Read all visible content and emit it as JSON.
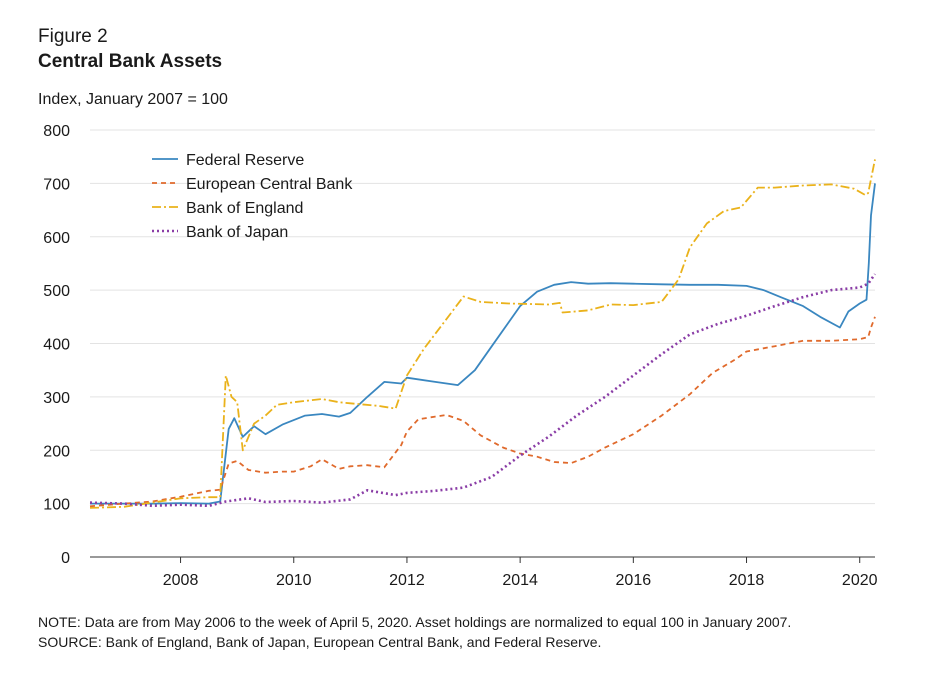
{
  "figure_label": "Figure 2",
  "footnotes": {
    "note": "NOTE: Data are from May 2006 to the week of April 5, 2020. Asset holdings are normalized to equal 100 in January 2007.",
    "source": "SOURCE: Bank of England, Bank of Japan, European Central Bank, and Federal Reserve."
  },
  "chart_data": {
    "type": "line",
    "title": "Central Bank Assets",
    "ylabel": "Index,  January 2007 = 100",
    "xlabel": "",
    "xlim": [
      2006.4,
      2020.27
    ],
    "ylim": [
      0,
      800
    ],
    "x_ticks": [
      2008,
      2010,
      2012,
      2014,
      2016,
      2018,
      2020
    ],
    "y_ticks": [
      0,
      100,
      200,
      300,
      400,
      500,
      600,
      700,
      800
    ],
    "grid": "horizontal",
    "legend_position": "top-left",
    "series": [
      {
        "name": "Federal Reserve",
        "color": "#3a87c0",
        "style": "solid",
        "points": [
          [
            2006.4,
            100
          ],
          [
            2007.0,
            100
          ],
          [
            2007.5,
            100
          ],
          [
            2008.0,
            101
          ],
          [
            2008.5,
            100
          ],
          [
            2008.7,
            104
          ],
          [
            2008.85,
            240
          ],
          [
            2008.95,
            260
          ],
          [
            2009.1,
            225
          ],
          [
            2009.3,
            245
          ],
          [
            2009.5,
            230
          ],
          [
            2009.8,
            248
          ],
          [
            2010.2,
            265
          ],
          [
            2010.5,
            268
          ],
          [
            2010.8,
            263
          ],
          [
            2011.0,
            270
          ],
          [
            2011.3,
            300
          ],
          [
            2011.6,
            328
          ],
          [
            2011.9,
            325
          ],
          [
            2012.0,
            336
          ],
          [
            2012.5,
            328
          ],
          [
            2012.9,
            322
          ],
          [
            2013.2,
            350
          ],
          [
            2013.5,
            395
          ],
          [
            2013.8,
            440
          ],
          [
            2014.0,
            470
          ],
          [
            2014.3,
            497
          ],
          [
            2014.6,
            510
          ],
          [
            2014.9,
            515
          ],
          [
            2015.2,
            512
          ],
          [
            2015.6,
            513
          ],
          [
            2016.0,
            512
          ],
          [
            2016.5,
            511
          ],
          [
            2017.0,
            510
          ],
          [
            2017.5,
            510
          ],
          [
            2018.0,
            508
          ],
          [
            2018.3,
            500
          ],
          [
            2018.6,
            487
          ],
          [
            2019.0,
            470
          ],
          [
            2019.3,
            450
          ],
          [
            2019.65,
            430
          ],
          [
            2019.8,
            460
          ],
          [
            2020.0,
            475
          ],
          [
            2020.12,
            482
          ],
          [
            2020.16,
            550
          ],
          [
            2020.2,
            640
          ],
          [
            2020.27,
            700
          ]
        ]
      },
      {
        "name": "European Central Bank",
        "color": "#e06a2c",
        "style": "dashed",
        "points": [
          [
            2006.4,
            95
          ],
          [
            2007.0,
            100
          ],
          [
            2007.5,
            104
          ],
          [
            2008.0,
            113
          ],
          [
            2008.5,
            124
          ],
          [
            2008.7,
            126
          ],
          [
            2008.85,
            175
          ],
          [
            2009.0,
            180
          ],
          [
            2009.2,
            163
          ],
          [
            2009.5,
            158
          ],
          [
            2009.8,
            160
          ],
          [
            2010.0,
            160
          ],
          [
            2010.3,
            170
          ],
          [
            2010.5,
            183
          ],
          [
            2010.8,
            165
          ],
          [
            2011.0,
            170
          ],
          [
            2011.3,
            172
          ],
          [
            2011.6,
            168
          ],
          [
            2011.9,
            210
          ],
          [
            2012.0,
            235
          ],
          [
            2012.2,
            258
          ],
          [
            2012.5,
            263
          ],
          [
            2012.7,
            266
          ],
          [
            2013.0,
            255
          ],
          [
            2013.3,
            228
          ],
          [
            2013.7,
            205
          ],
          [
            2014.0,
            194
          ],
          [
            2014.3,
            188
          ],
          [
            2014.6,
            178
          ],
          [
            2014.9,
            176
          ],
          [
            2015.2,
            188
          ],
          [
            2015.5,
            205
          ],
          [
            2016.0,
            230
          ],
          [
            2016.5,
            265
          ],
          [
            2017.0,
            305
          ],
          [
            2017.4,
            345
          ],
          [
            2017.8,
            370
          ],
          [
            2018.0,
            385
          ],
          [
            2018.5,
            395
          ],
          [
            2019.0,
            405
          ],
          [
            2019.5,
            405
          ],
          [
            2020.0,
            408
          ],
          [
            2020.15,
            412
          ],
          [
            2020.2,
            430
          ],
          [
            2020.27,
            450
          ]
        ]
      },
      {
        "name": "Bank of England",
        "color": "#eab21b",
        "style": "dashdot",
        "points": [
          [
            2006.4,
            92
          ],
          [
            2007.0,
            94
          ],
          [
            2007.5,
            102
          ],
          [
            2008.0,
            110
          ],
          [
            2008.5,
            112
          ],
          [
            2008.7,
            112
          ],
          [
            2008.8,
            340
          ],
          [
            2008.9,
            300
          ],
          [
            2009.0,
            290
          ],
          [
            2009.1,
            200
          ],
          [
            2009.3,
            250
          ],
          [
            2009.5,
            265
          ],
          [
            2009.7,
            285
          ],
          [
            2010.0,
            290
          ],
          [
            2010.5,
            296
          ],
          [
            2010.8,
            290
          ],
          [
            2011.0,
            288
          ],
          [
            2011.5,
            283
          ],
          [
            2011.8,
            278
          ],
          [
            2012.0,
            340
          ],
          [
            2012.3,
            390
          ],
          [
            2012.5,
            418
          ],
          [
            2012.8,
            460
          ],
          [
            2013.0,
            488
          ],
          [
            2013.3,
            478
          ],
          [
            2013.8,
            475
          ],
          [
            2014.5,
            473
          ],
          [
            2014.7,
            476
          ],
          [
            2014.75,
            458
          ],
          [
            2015.2,
            462
          ],
          [
            2015.6,
            473
          ],
          [
            2016.0,
            472
          ],
          [
            2016.5,
            478
          ],
          [
            2016.8,
            520
          ],
          [
            2017.0,
            580
          ],
          [
            2017.3,
            625
          ],
          [
            2017.6,
            648
          ],
          [
            2017.9,
            655
          ],
          [
            2018.2,
            692
          ],
          [
            2018.5,
            692
          ],
          [
            2019.0,
            696
          ],
          [
            2019.5,
            698
          ],
          [
            2019.9,
            690
          ],
          [
            2020.1,
            678
          ],
          [
            2020.15,
            682
          ],
          [
            2020.27,
            745
          ]
        ]
      },
      {
        "name": "Bank of Japan",
        "color": "#8a3da6",
        "style": "dotted",
        "points": [
          [
            2006.4,
            102
          ],
          [
            2007.0,
            100
          ],
          [
            2007.5,
            96
          ],
          [
            2008.0,
            98
          ],
          [
            2008.5,
            96
          ],
          [
            2008.8,
            104
          ],
          [
            2009.2,
            110
          ],
          [
            2009.5,
            103
          ],
          [
            2010.0,
            105
          ],
          [
            2010.5,
            102
          ],
          [
            2011.0,
            108
          ],
          [
            2011.3,
            125
          ],
          [
            2011.8,
            116
          ],
          [
            2012.0,
            120
          ],
          [
            2012.5,
            124
          ],
          [
            2013.0,
            130
          ],
          [
            2013.5,
            150
          ],
          [
            2014.0,
            190
          ],
          [
            2014.5,
            225
          ],
          [
            2015.0,
            265
          ],
          [
            2015.5,
            300
          ],
          [
            2016.0,
            340
          ],
          [
            2016.5,
            380
          ],
          [
            2017.0,
            417
          ],
          [
            2017.5,
            437
          ],
          [
            2018.0,
            452
          ],
          [
            2018.5,
            470
          ],
          [
            2019.0,
            487
          ],
          [
            2019.5,
            500
          ],
          [
            2020.0,
            505
          ],
          [
            2020.15,
            512
          ],
          [
            2020.27,
            530
          ]
        ]
      }
    ]
  }
}
